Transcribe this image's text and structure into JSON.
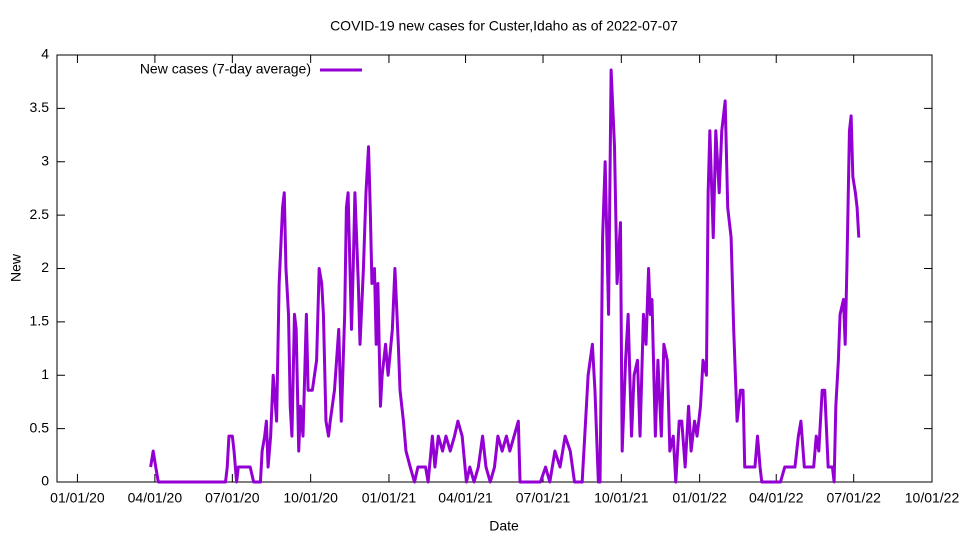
{
  "chart_data": {
    "type": "line",
    "title": "COVID-19 new cases for Custer,Idaho as of 2022-07-07",
    "x_label": "Date",
    "y_label": "New",
    "legend": "top-left",
    "xlim": [
      "12/08/19",
      "10/01/22"
    ],
    "xticks": [
      "01/01/20",
      "04/01/20",
      "07/01/20",
      "10/01/20",
      "01/01/21",
      "04/01/21",
      "07/01/21",
      "10/01/21",
      "01/01/22",
      "04/01/22",
      "07/01/22",
      "10/01/22"
    ],
    "ylim": [
      0,
      4
    ],
    "yticks": [
      0,
      0.5,
      1,
      1.5,
      2,
      2.5,
      3,
      3.5,
      4
    ],
    "x": [
      "03/27/20",
      "03/30/20",
      "04/02/20",
      "04/05/20",
      "06/23/20",
      "06/25/20",
      "06/27/20",
      "07/01/20",
      "07/03/20",
      "07/06/20",
      "07/08/20",
      "07/22/20",
      "07/26/20",
      "08/03/20",
      "08/05/20",
      "08/08/20",
      "08/10/20",
      "08/12/20",
      "08/15/20",
      "08/18/20",
      "08/22/20",
      "08/25/20",
      "08/29/20",
      "08/31/20",
      "09/02/20",
      "09/05/20",
      "09/07/20",
      "09/09/20",
      "09/12/20",
      "09/14/20",
      "09/17/20",
      "09/19/20",
      "09/22/20",
      "09/26/20",
      "09/28/20",
      "10/03/20",
      "10/08/20",
      "10/11/20",
      "10/14/20",
      "10/16/20",
      "10/19/20",
      "10/22/20",
      "10/24/20",
      "10/29/20",
      "11/03/20",
      "11/06/20",
      "11/10/20",
      "11/12/20",
      "11/14/20",
      "11/18/20",
      "11/20/20",
      "11/22/20",
      "11/26/20",
      "11/28/20",
      "12/02/20",
      "12/05/20",
      "12/08/20",
      "12/10/20",
      "12/12/20",
      "12/15/20",
      "12/17/20",
      "12/19/20",
      "12/22/20",
      "12/24/20",
      "12/28/20",
      "12/31/20",
      "01/05/21",
      "01/08/21",
      "01/12/21",
      "01/14/21",
      "01/18/21",
      "01/21/21",
      "01/26/21",
      "01/31/21",
      "02/04/21",
      "02/13/21",
      "02/16/21",
      "02/21/21",
      "02/24/21",
      "02/28/21",
      "03/05/21",
      "03/09/21",
      "03/14/21",
      "03/19/21",
      "03/23/21",
      "03/28/21",
      "04/02/21",
      "04/06/21",
      "04/11/21",
      "04/16/21",
      "04/21/21",
      "04/25/21",
      "04/30/21",
      "05/05/21",
      "05/09/21",
      "05/14/21",
      "05/19/21",
      "05/23/21",
      "05/28/21",
      "06/02/21",
      "06/04/21",
      "06/28/21",
      "07/04/21",
      "07/09/21",
      "07/15/21",
      "07/21/21",
      "07/27/21",
      "08/02/21",
      "08/07/21",
      "08/16/21",
      "08/20/21",
      "08/23/21",
      "08/28/21",
      "08/31/21",
      "09/04/21",
      "09/06/21",
      "09/09/21",
      "09/12/21",
      "09/16/21",
      "09/19/21",
      "09/23/21",
      "09/26/21",
      "09/30/21",
      "10/02/21",
      "10/06/21",
      "10/09/21",
      "10/13/21",
      "10/16/21",
      "10/20/21",
      "10/23/21",
      "10/27/21",
      "10/30/21",
      "11/02/21",
      "11/04/21",
      "11/06/21",
      "11/10/21",
      "11/13/21",
      "11/17/21",
      "11/20/21",
      "11/24/21",
      "11/27/21",
      "12/01/21",
      "12/04/21",
      "12/08/21",
      "12/11/21",
      "12/15/21",
      "12/19/21",
      "12/22/21",
      "12/26/21",
      "12/29/21",
      "01/02/22",
      "01/05/22",
      "01/09/22",
      "01/11/22",
      "01/13/22",
      "01/17/22",
      "01/20/22",
      "01/24/22",
      "01/27/22",
      "01/31/22",
      "02/03/22",
      "02/07/22",
      "02/10/22",
      "02/14/22",
      "02/18/22",
      "02/21/22",
      "02/23/22",
      "03/07/22",
      "03/10/22",
      "03/13/22",
      "03/15/22",
      "04/06/22",
      "04/11/22",
      "04/23/22",
      "04/27/22",
      "04/30/22",
      "05/04/22",
      "05/15/22",
      "05/18/22",
      "05/21/22",
      "05/25/22",
      "05/28/22",
      "06/01/22",
      "06/06/22",
      "06/08/22",
      "06/10/22",
      "06/13/22",
      "06/15/22",
      "06/19/22",
      "06/21/22",
      "06/23/22",
      "06/26/22",
      "06/28/22",
      "06/30/22",
      "07/03/22",
      "07/05/22",
      "07/07/22"
    ],
    "series": [
      {
        "name": "New cases (7-day average)",
        "color": "#9400d3",
        "values": [
          0.14,
          0.29,
          0.14,
          0,
          0,
          0.14,
          0.43,
          0.43,
          0.29,
          0,
          0.14,
          0.14,
          0,
          0,
          0.29,
          0.43,
          0.57,
          0.14,
          0.43,
          1.0,
          0.57,
          1.86,
          2.57,
          2.71,
          2.0,
          1.57,
          0.71,
          0.43,
          1.57,
          1.43,
          0.29,
          0.71,
          0.43,
          1.57,
          0.86,
          0.86,
          1.14,
          2.0,
          1.86,
          1.57,
          0.57,
          0.43,
          0.57,
          0.86,
          1.43,
          0.57,
          1.57,
          2.57,
          2.71,
          1.43,
          2.0,
          2.71,
          1.86,
          1.29,
          2.0,
          2.71,
          3.14,
          2.57,
          1.86,
          2.0,
          1.29,
          1.86,
          0.71,
          1.0,
          1.29,
          1.0,
          1.43,
          2.0,
          1.29,
          0.86,
          0.57,
          0.29,
          0.14,
          0,
          0.14,
          0.14,
          0,
          0.43,
          0.14,
          0.43,
          0.29,
          0.43,
          0.29,
          0.43,
          0.57,
          0.43,
          0,
          0.14,
          0,
          0.14,
          0.43,
          0.14,
          0,
          0.14,
          0.43,
          0.29,
          0.43,
          0.29,
          0.43,
          0.57,
          0,
          0,
          0.14,
          0,
          0.29,
          0.14,
          0.43,
          0.29,
          0,
          0,
          0.57,
          1.0,
          1.29,
          0.86,
          0,
          0,
          2.29,
          3.0,
          1.57,
          3.86,
          3.14,
          1.86,
          2.43,
          0.29,
          1.14,
          1.57,
          0.43,
          1.0,
          1.14,
          0.43,
          1.57,
          1.29,
          2.0,
          1.57,
          1.71,
          0.43,
          1.14,
          0.43,
          1.29,
          1.14,
          0.29,
          0.43,
          0,
          0.57,
          0.57,
          0.14,
          0.71,
          0.29,
          0.57,
          0.43,
          0.71,
          1.14,
          1.0,
          2.71,
          3.29,
          2.29,
          3.29,
          2.71,
          3.29,
          3.57,
          2.57,
          2.29,
          1.43,
          0.57,
          0.86,
          0.86,
          0.14,
          0.14,
          0.43,
          0.14,
          0,
          0,
          0.14,
          0.14,
          0.43,
          0.57,
          0.14,
          0.14,
          0.43,
          0.29,
          0.86,
          0.86,
          0.14,
          0.14,
          0,
          0.71,
          1.14,
          1.57,
          1.71,
          1.29,
          2.0,
          3.29,
          3.43,
          2.86,
          2.71,
          2.57,
          2.29
        ]
      }
    ]
  }
}
